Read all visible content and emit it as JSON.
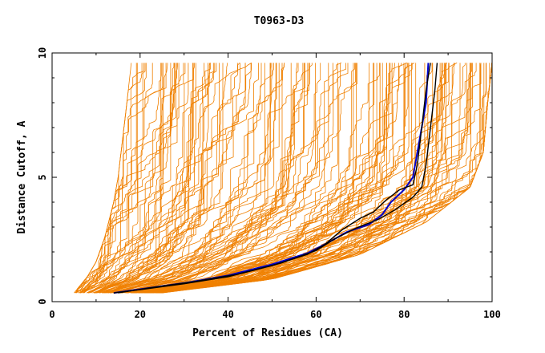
{
  "chart_data": {
    "type": "line",
    "title": "T0963-D3",
    "xlabel": "Percent of Residues (CA)",
    "ylabel": "Distance Cutoff, A",
    "xlim": [
      0,
      100
    ],
    "ylim": [
      0,
      10
    ],
    "x_ticks": [
      0,
      20,
      40,
      60,
      80,
      100
    ],
    "y_ticks": [
      0,
      5,
      10
    ],
    "grid": false,
    "legend": "none",
    "colors": {
      "background_models": "#f08000",
      "highlight_blue": "#0000cc",
      "highlight_black": "#000000"
    },
    "background_model_count": 150,
    "background_envelope": {
      "left_edge": [
        [
          5,
          0.35
        ],
        [
          8,
          1.0
        ],
        [
          10,
          1.6
        ],
        [
          12,
          2.6
        ],
        [
          14,
          4.0
        ],
        [
          15,
          5.0
        ],
        [
          16,
          6.5
        ],
        [
          17,
          8.0
        ],
        [
          18,
          9.6
        ]
      ],
      "right_edge": [
        [
          25,
          0.35
        ],
        [
          50,
          0.9
        ],
        [
          70,
          1.9
        ],
        [
          85,
          3.2
        ],
        [
          95,
          4.6
        ],
        [
          98,
          6.0
        ],
        [
          99,
          8.0
        ],
        [
          100,
          9.6
        ]
      ]
    },
    "highlight_series": [
      {
        "color": "#0000cc",
        "points": [
          [
            14,
            0.35
          ],
          [
            20,
            0.5
          ],
          [
            30,
            0.75
          ],
          [
            40,
            1.05
          ],
          [
            50,
            1.5
          ],
          [
            58,
            1.95
          ],
          [
            63,
            2.4
          ],
          [
            67,
            2.8
          ],
          [
            72,
            3.1
          ],
          [
            75,
            3.5
          ],
          [
            77,
            4.0
          ],
          [
            80,
            4.5
          ],
          [
            82,
            5.0
          ],
          [
            83,
            6.0
          ],
          [
            84,
            7.0
          ],
          [
            85,
            8.0
          ],
          [
            85.5,
            9.6
          ]
        ]
      },
      {
        "color": "#000000",
        "points": [
          [
            14,
            0.35
          ],
          [
            20,
            0.48
          ],
          [
            30,
            0.72
          ],
          [
            40,
            1.0
          ],
          [
            50,
            1.45
          ],
          [
            58,
            1.9
          ],
          [
            62,
            2.3
          ],
          [
            66,
            2.9
          ],
          [
            70,
            3.35
          ],
          [
            73,
            3.6
          ],
          [
            76,
            4.1
          ],
          [
            79,
            4.5
          ],
          [
            82,
            4.7
          ],
          [
            83,
            5.5
          ],
          [
            84,
            7.0
          ],
          [
            85,
            8.5
          ],
          [
            86,
            9.6
          ]
        ]
      },
      {
        "color": "#000000",
        "points": [
          [
            15,
            0.35
          ],
          [
            22,
            0.55
          ],
          [
            32,
            0.8
          ],
          [
            42,
            1.1
          ],
          [
            52,
            1.55
          ],
          [
            60,
            2.05
          ],
          [
            64,
            2.5
          ],
          [
            69,
            2.95
          ],
          [
            74,
            3.3
          ],
          [
            78,
            3.7
          ],
          [
            82,
            4.2
          ],
          [
            84,
            4.6
          ],
          [
            85,
            5.5
          ],
          [
            86,
            7.0
          ],
          [
            87,
            8.5
          ],
          [
            87.5,
            9.6
          ]
        ]
      }
    ]
  }
}
